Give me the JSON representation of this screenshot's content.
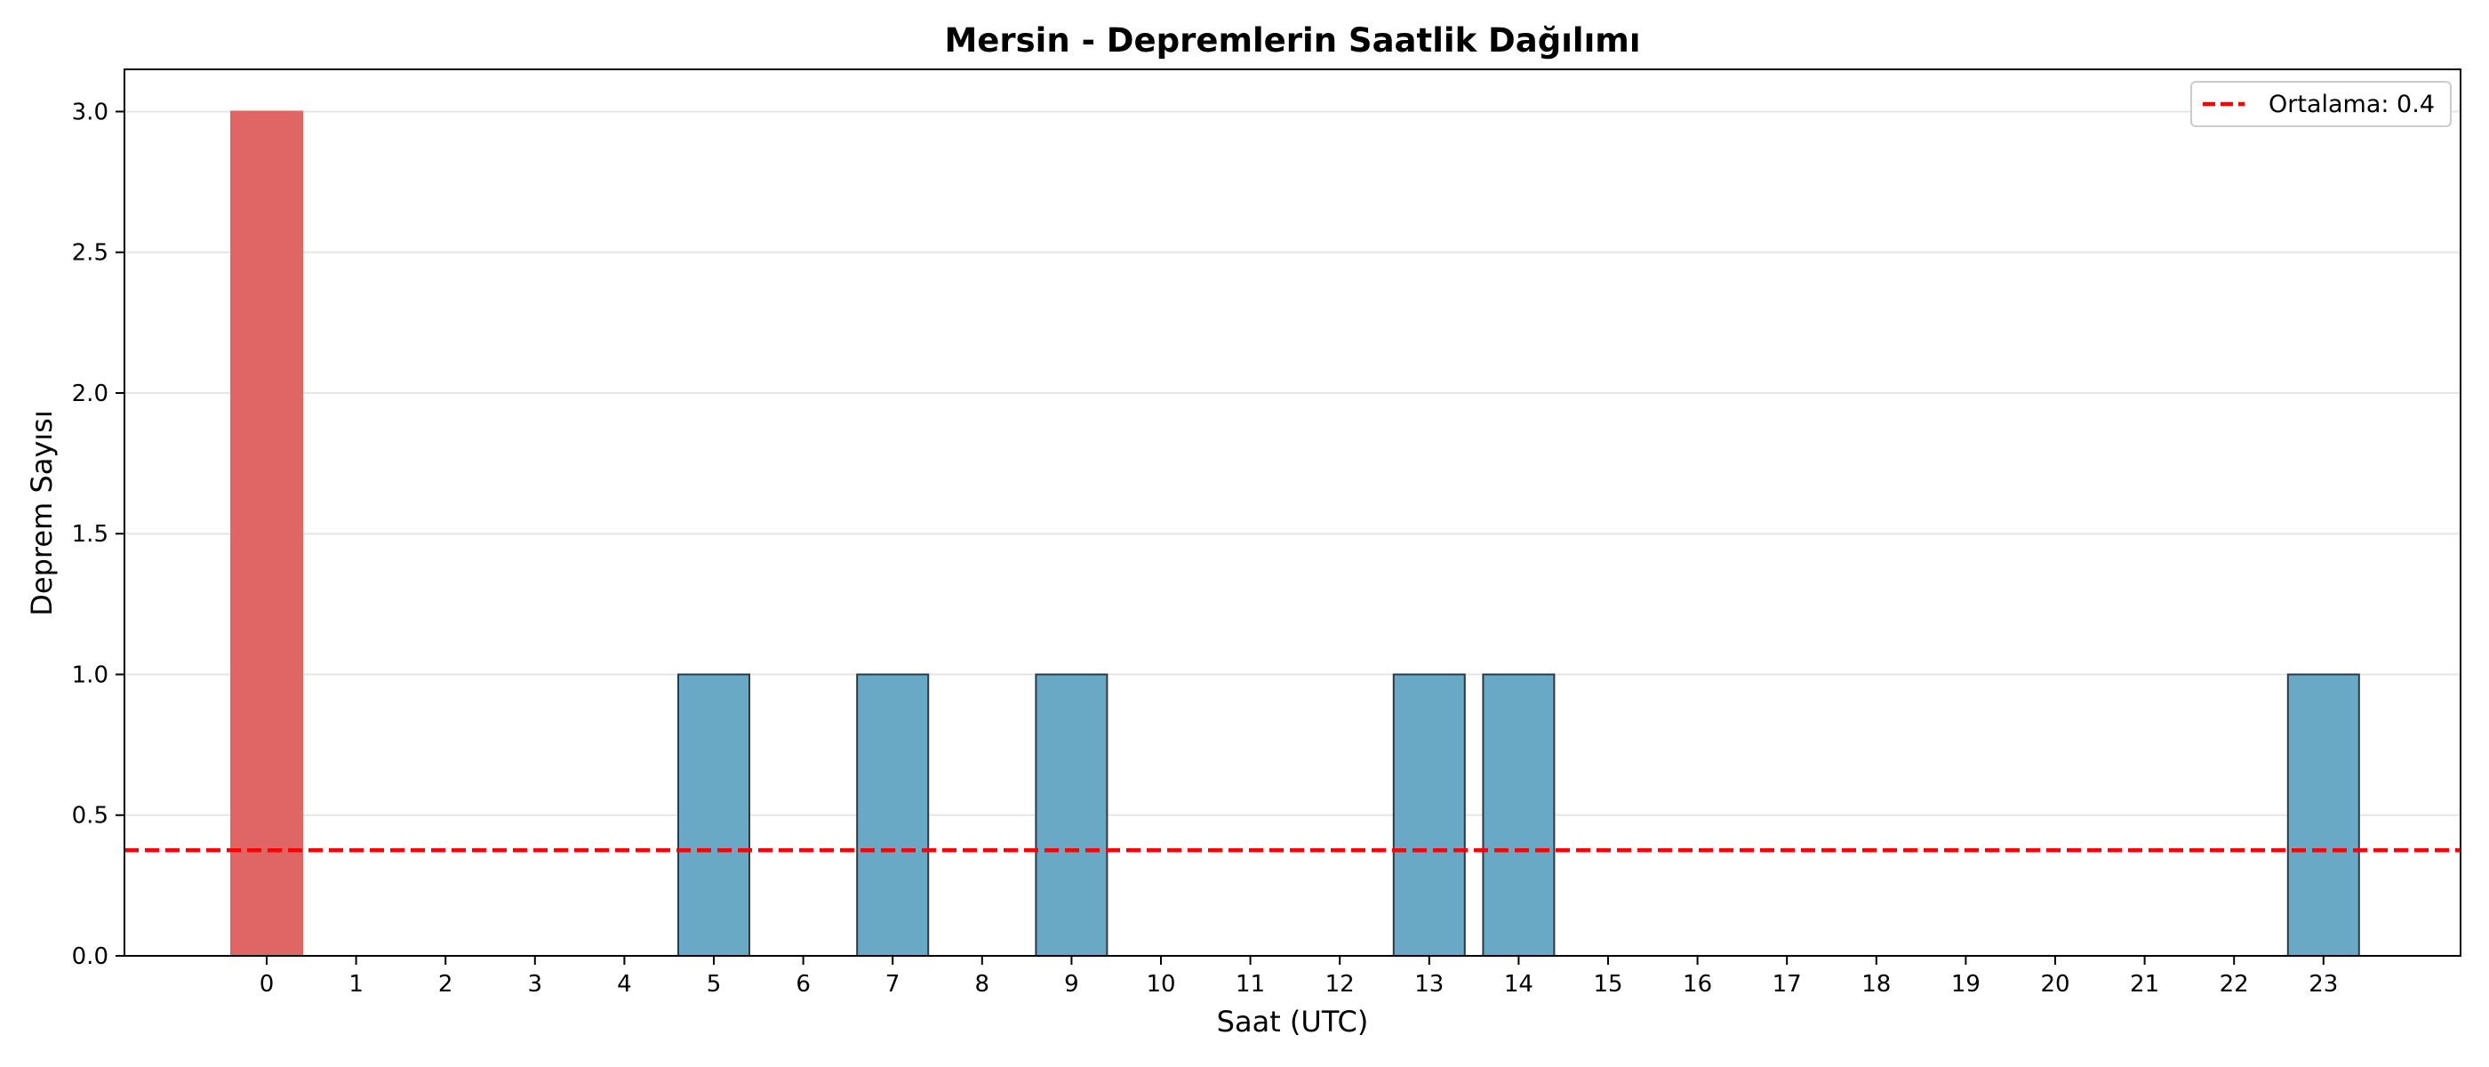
{
  "chart_data": {
    "type": "bar",
    "title": "Mersin - Depremlerin Saatlik Dağılımı",
    "xlabel": "Saat (UTC)",
    "ylabel": "Deprem Sayısı",
    "categories": [
      "0",
      "1",
      "2",
      "3",
      "4",
      "5",
      "6",
      "7",
      "8",
      "9",
      "10",
      "11",
      "12",
      "13",
      "14",
      "15",
      "16",
      "17",
      "18",
      "19",
      "20",
      "21",
      "22",
      "23"
    ],
    "values": [
      3,
      0,
      0,
      0,
      0,
      1,
      0,
      1,
      0,
      1,
      0,
      0,
      0,
      1,
      1,
      0,
      0,
      0,
      0,
      0,
      0,
      0,
      0,
      1
    ],
    "highlight_index": 0,
    "ylim": [
      0,
      3.15
    ],
    "yticks": [
      "0.0",
      "0.5",
      "1.0",
      "1.5",
      "2.0",
      "2.5",
      "3.0"
    ],
    "mean": 0.375,
    "legend": {
      "label": "Ortalama: 0.4",
      "placement": "top-right"
    },
    "grid": "y",
    "colors": {
      "bar": "#6aa9c6",
      "highlight": "#e06666",
      "edge": "#2b3a4a",
      "mean_line": "#ff0000",
      "grid": "#e5e5e5"
    }
  }
}
